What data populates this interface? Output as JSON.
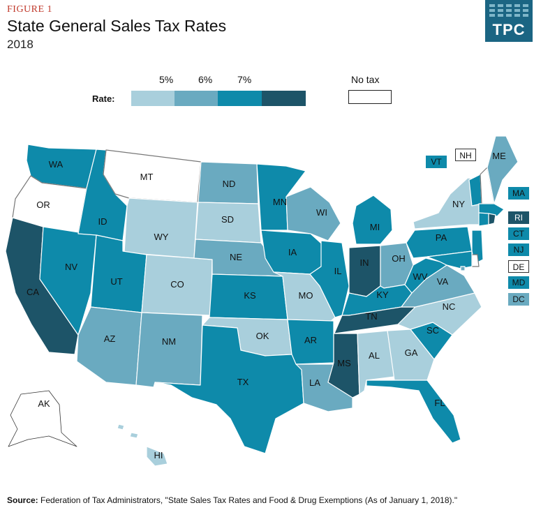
{
  "figure_label": "FIGURE 1",
  "title": "State General Sales Tax Rates",
  "subtitle": "2018",
  "logo": {
    "text": "TPC"
  },
  "legend": {
    "rate_label": "Rate:",
    "ticks": [
      "5%",
      "6%",
      "7%"
    ],
    "no_tax_label": "No tax",
    "colors": {
      "notax": "#ffffff",
      "lt5": "#a9cfdc",
      "5to6": "#6aaac0",
      "6to7": "#0e8aaa",
      "7plus": "#1d5468"
    }
  },
  "states": {
    "WA": "6to7",
    "OR": "notax",
    "CA": "7plus",
    "NV": "6to7",
    "ID": "6to7",
    "MT": "notax",
    "WY": "lt5",
    "UT": "6to7",
    "AZ": "5to6",
    "CO": "lt5",
    "NM": "5to6",
    "ND": "5to6",
    "SD": "lt5",
    "NE": "5to6",
    "KS": "6to7",
    "OK": "lt5",
    "TX": "6to7",
    "MN": "6to7",
    "IA": "6to7",
    "MO": "lt5",
    "AR": "6to7",
    "LA": "5to6",
    "WI": "5to6",
    "IL": "6to7",
    "MI": "6to7",
    "IN": "7plus",
    "KY": "6to7",
    "TN": "7plus",
    "MS": "7plus",
    "AL": "lt5",
    "GA": "lt5",
    "FL": "6to7",
    "SC": "6to7",
    "NC": "lt5",
    "VA": "5to6",
    "WV": "6to7",
    "OH": "5to6",
    "PA": "6to7",
    "NY": "lt5",
    "VT": "6to7",
    "NH": "notax",
    "ME": "5to6",
    "MA": "6to7",
    "RI": "7plus",
    "CT": "6to7",
    "NJ": "6to7",
    "DE": "notax",
    "MD": "6to7",
    "DC": "5to6",
    "AK": "notax",
    "HI": "lt5"
  },
  "state_labels": [
    "WA",
    "OR",
    "CA",
    "NV",
    "ID",
    "MT",
    "WY",
    "UT",
    "AZ",
    "CO",
    "NM",
    "ND",
    "SD",
    "NE",
    "KS",
    "OK",
    "TX",
    "MN",
    "IA",
    "MO",
    "AR",
    "LA",
    "WI",
    "IL",
    "MI",
    "IN",
    "KY",
    "TN",
    "MS",
    "AL",
    "GA",
    "FL",
    "SC",
    "NC",
    "VA",
    "WV",
    "OH",
    "PA",
    "NY",
    "ME",
    "AK",
    "HI"
  ],
  "east_tags": [
    "VT",
    "NH",
    "MA",
    "CT",
    "RI",
    "NJ",
    "DE",
    "MD",
    "DC"
  ],
  "source": {
    "label": "Source:",
    "text": "Federation of Tax Administrators, \"State Sales Tax Rates and Food & Drug Exemptions (As of January 1, 2018).\""
  }
}
